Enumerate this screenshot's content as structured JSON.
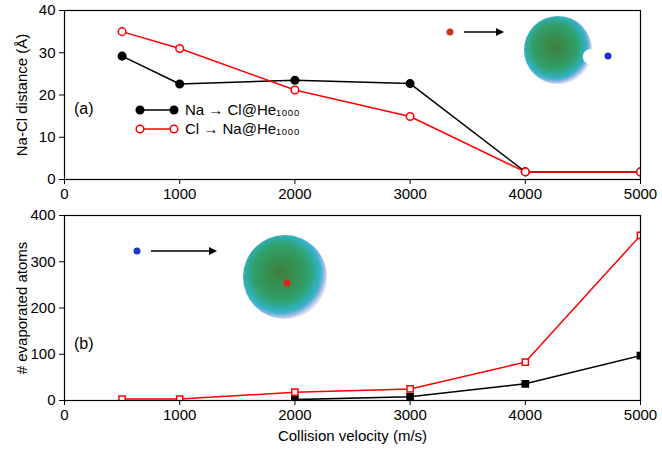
{
  "chart_data": [
    {
      "type": "line",
      "panel_label": "(a)",
      "y_label": "Na-Cl distance (Å)",
      "xlim": [
        0,
        5000
      ],
      "xticks": [
        0,
        1000,
        2000,
        3000,
        4000,
        5000
      ],
      "ylim": [
        0,
        40
      ],
      "yticks": [
        0,
        10,
        20,
        30,
        40
      ],
      "legend": "left",
      "x": [
        500,
        1000,
        2000,
        3000,
        4000,
        5000
      ],
      "series": [
        {
          "name": "Na → Cl@He₁₀₀₀",
          "color": "#000000",
          "marker": "circle",
          "line_style": "solid",
          "values": [
            29.2,
            22.6,
            23.5,
            22.7,
            1.8,
            1.8
          ]
        },
        {
          "name": "Cl → Na@He₁₀₀₀",
          "color": "#ff0000",
          "marker": "circle-open",
          "line_style": "solid",
          "values": [
            35.0,
            31.0,
            21.2,
            14.9,
            1.8,
            1.8
          ]
        }
      ]
    },
    {
      "type": "line",
      "panel_label": "(b)",
      "x_label": "Collision velocity (m/s)",
      "y_label": "# evaporated atoms",
      "xlim": [
        0,
        5000
      ],
      "xticks": [
        0,
        1000,
        2000,
        3000,
        4000,
        5000
      ],
      "ylim": [
        0,
        400
      ],
      "yticks": [
        0,
        100,
        200,
        300,
        400
      ],
      "x": [
        500,
        1000,
        2000,
        3000,
        4000,
        5000
      ],
      "series": [
        {
          "color": "#000000",
          "marker": "square",
          "line_style": "solid",
          "values": [
            null,
            null,
            2,
            8,
            36,
            97
          ]
        },
        {
          "color": "#ff0000",
          "marker": "square-open",
          "line_style": "solid",
          "values": [
            3,
            3,
            18,
            25,
            83,
            357
          ]
        }
      ]
    }
  ]
}
